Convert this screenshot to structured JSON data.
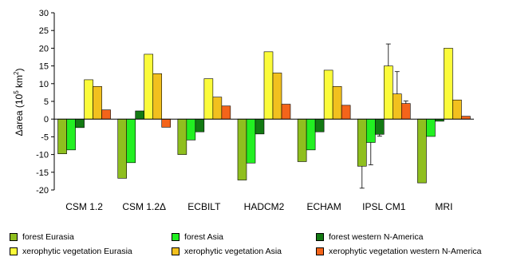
{
  "chart_data": {
    "type": "bar",
    "ylabel": "Δarea (10⁵ km²)",
    "ylabel_parts": [
      "Δarea (10",
      "5",
      " km",
      "2",
      ")"
    ],
    "ylim": [
      -20,
      30
    ],
    "yticks": [
      30,
      25,
      20,
      15,
      10,
      5,
      0,
      -5,
      -10,
      -15,
      -20
    ],
    "categories": [
      "CSM 1.2",
      "CSM 1.2Δ",
      "ECBILT",
      "HADCM2",
      "ECHAM",
      "IPSL CM1",
      "MRI"
    ],
    "series": [
      {
        "name": "forest Eurasia",
        "color": "#8fbf1f",
        "values": [
          -9.8,
          -16.7,
          -10.0,
          -17.2,
          -12.0,
          -13.3,
          -18.0
        ],
        "error": [
          null,
          null,
          null,
          null,
          null,
          6.2,
          null
        ]
      },
      {
        "name": "forest Asia",
        "color": "#22f022",
        "values": [
          -8.7,
          -12.3,
          -5.9,
          -12.4,
          -8.7,
          -6.6,
          -4.9
        ],
        "error": [
          null,
          null,
          null,
          null,
          null,
          6.3,
          null
        ]
      },
      {
        "name": "forest western N-America",
        "color": "#137a13",
        "values": [
          -2.4,
          2.3,
          -3.6,
          -4.2,
          -3.6,
          -4.3,
          -0.6
        ],
        "error": [
          null,
          null,
          null,
          null,
          null,
          0.5,
          null
        ]
      },
      {
        "name": "xerophytic vegetation Eurasia",
        "color": "#fbfb3a",
        "values": [
          11.1,
          18.3,
          11.4,
          19.0,
          13.8,
          15.0,
          20.0
        ],
        "error": [
          null,
          null,
          null,
          null,
          null,
          6.2,
          null
        ]
      },
      {
        "name": "xerophytic vegetation Asia",
        "color": "#f2c01e",
        "values": [
          9.2,
          12.8,
          6.2,
          13.0,
          9.2,
          7.1,
          5.4
        ],
        "error": [
          null,
          null,
          null,
          null,
          null,
          6.3,
          null
        ]
      },
      {
        "name": "xerophytic vegetation western N-America",
        "color": "#f4641a",
        "values": [
          2.6,
          -2.3,
          3.7,
          4.2,
          3.9,
          4.4,
          0.8
        ],
        "error": [
          null,
          null,
          null,
          null,
          null,
          0.7,
          null
        ]
      }
    ]
  }
}
